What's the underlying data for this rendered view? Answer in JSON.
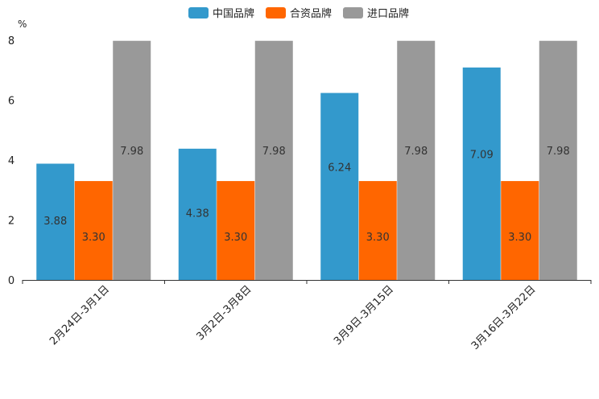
{
  "chart_data": {
    "type": "bar",
    "unit_label": "%",
    "categories": [
      "2月24日-3月1日",
      "3月2日-3月8日",
      "3月9日-3月15日",
      "3月16日-3月22日"
    ],
    "series": [
      {
        "name": "中国品牌",
        "color": "#3399cc",
        "values": [
          3.88,
          4.38,
          6.24,
          7.09
        ]
      },
      {
        "name": "合资品牌",
        "color": "#ff6600",
        "values": [
          3.3,
          3.3,
          3.3,
          3.3
        ]
      },
      {
        "name": "进口品牌",
        "color": "#999999",
        "values": [
          7.98,
          7.98,
          7.98,
          7.98
        ]
      }
    ],
    "ylim": [
      0,
      8
    ],
    "yticks": [
      0,
      2,
      4,
      6,
      8
    ],
    "legend_position": "top-center",
    "grid": false
  }
}
